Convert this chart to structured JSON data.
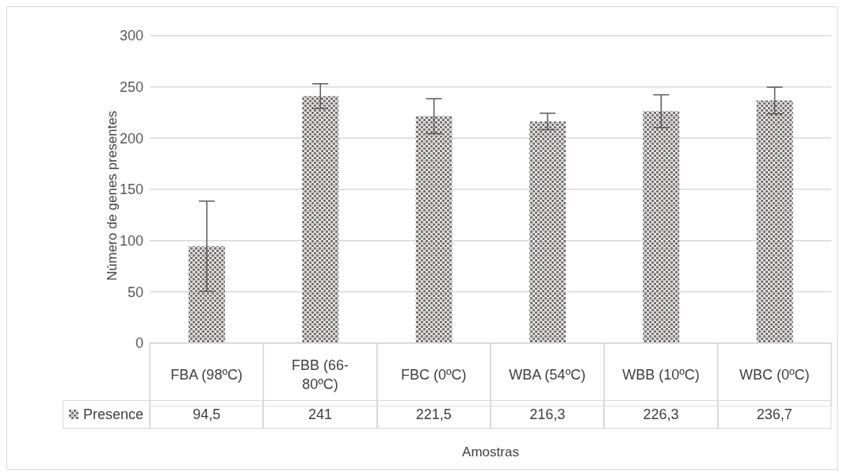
{
  "chart_data": {
    "type": "bar",
    "xlabel": "Amostras",
    "ylabel": "Número de genes presentes",
    "categories": [
      "FBA (98ºC)",
      "FBB (66-80ºC)",
      "FBC (0ºC)",
      "WBA (54ºC)",
      "WBB (10ºC)",
      "WBC (0ºC)"
    ],
    "series": [
      {
        "name": "Presence",
        "color": "#767171",
        "values": [
          94.5,
          241,
          221.5,
          216.3,
          226.3,
          236.7
        ],
        "errors": [
          44,
          12,
          17,
          8,
          16,
          13
        ],
        "value_labels": [
          "94,5",
          "241",
          "221,5",
          "216,3",
          "226,3",
          "236,7"
        ]
      }
    ],
    "ylim": [
      0,
      300
    ],
    "yticks": [
      0,
      50,
      100,
      150,
      200,
      250,
      300
    ],
    "grid": "y",
    "legend": "bottom"
  }
}
